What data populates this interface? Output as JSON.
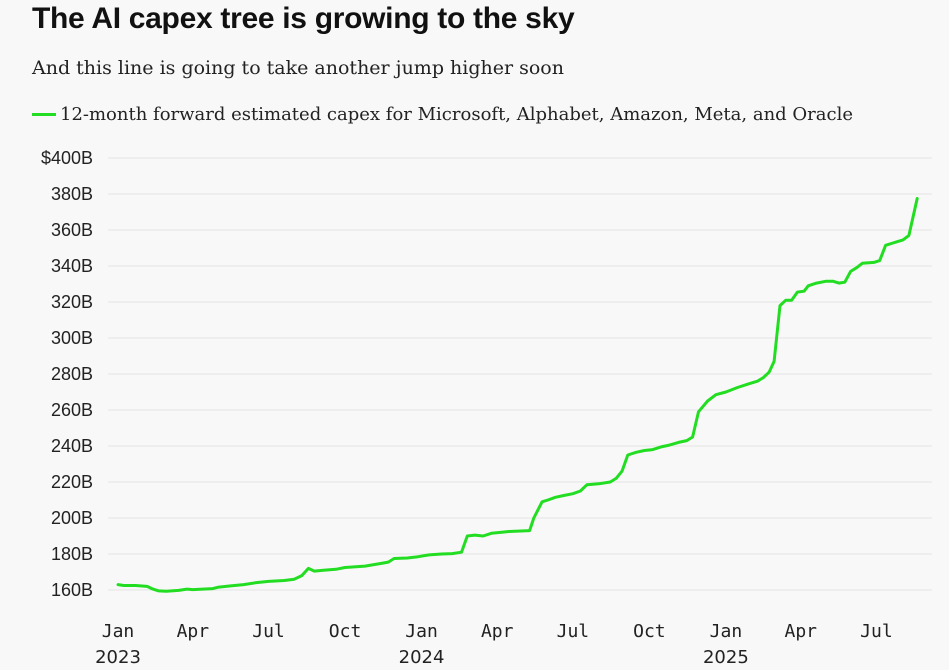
{
  "chart_data": {
    "type": "line",
    "title": "The AI capex tree is growing to the sky",
    "subtitle": "And this line is going to take another jump higher soon",
    "xlabel": "",
    "ylabel": "",
    "ylim": [
      160,
      400
    ],
    "xlim": [
      "2023-01-01",
      "2025-08-20"
    ],
    "y_ticks": [
      {
        "value": 160,
        "label": "160B"
      },
      {
        "value": 180,
        "label": "180B"
      },
      {
        "value": 200,
        "label": "200B"
      },
      {
        "value": 220,
        "label": "220B"
      },
      {
        "value": 240,
        "label": "240B"
      },
      {
        "value": 260,
        "label": "260B"
      },
      {
        "value": 280,
        "label": "280B"
      },
      {
        "value": 300,
        "label": "300B"
      },
      {
        "value": 320,
        "label": "320B"
      },
      {
        "value": 340,
        "label": "340B"
      },
      {
        "value": 360,
        "label": "360B"
      },
      {
        "value": 380,
        "label": "380B"
      },
      {
        "value": 400,
        "label": "$400B"
      }
    ],
    "x_ticks": [
      {
        "date": "2023-01-01",
        "label": "Jan",
        "year": "2023"
      },
      {
        "date": "2023-04-01",
        "label": "Apr"
      },
      {
        "date": "2023-07-01",
        "label": "Jul"
      },
      {
        "date": "2023-10-01",
        "label": "Oct"
      },
      {
        "date": "2024-01-01",
        "label": "Jan",
        "year": "2024"
      },
      {
        "date": "2024-04-01",
        "label": "Apr"
      },
      {
        "date": "2024-07-01",
        "label": "Jul"
      },
      {
        "date": "2024-10-01",
        "label": "Oct"
      },
      {
        "date": "2025-01-01",
        "label": "Jan",
        "year": "2025"
      },
      {
        "date": "2025-04-01",
        "label": "Apr"
      },
      {
        "date": "2025-07-01",
        "label": "Jul"
      }
    ],
    "grid": true,
    "legend_position": "top-left",
    "series": [
      {
        "name": "12-month forward estimated capex for Microsoft, Alphabet, Amazon, Meta, and Oracle",
        "color": "#22dd22",
        "points": [
          [
            "2023-01-01",
            163
          ],
          [
            "2023-01-08",
            162.5
          ],
          [
            "2023-01-22",
            162.5
          ],
          [
            "2023-02-05",
            162
          ],
          [
            "2023-02-12",
            160.5
          ],
          [
            "2023-02-19",
            159.5
          ],
          [
            "2023-02-28",
            159.3
          ],
          [
            "2023-03-15",
            159.8
          ],
          [
            "2023-03-25",
            160.5
          ],
          [
            "2023-04-01",
            160.2
          ],
          [
            "2023-04-25",
            160.8
          ],
          [
            "2023-05-01",
            161.5
          ],
          [
            "2023-05-15",
            162.2
          ],
          [
            "2023-06-01",
            163
          ],
          [
            "2023-06-15",
            164
          ],
          [
            "2023-07-01",
            164.8
          ],
          [
            "2023-07-20",
            165.3
          ],
          [
            "2023-08-01",
            166
          ],
          [
            "2023-08-10",
            168
          ],
          [
            "2023-08-18",
            172
          ],
          [
            "2023-08-25",
            170.5
          ],
          [
            "2023-09-05",
            171
          ],
          [
            "2023-09-20",
            171.5
          ],
          [
            "2023-10-01",
            172.5
          ],
          [
            "2023-10-25",
            173.3
          ],
          [
            "2023-11-10",
            174.5
          ],
          [
            "2023-11-22",
            175.5
          ],
          [
            "2023-11-29",
            177.5
          ],
          [
            "2023-12-15",
            177.8
          ],
          [
            "2023-12-28",
            178.5
          ],
          [
            "2024-01-10",
            179.5
          ],
          [
            "2024-01-25",
            180
          ],
          [
            "2024-02-07",
            180.2
          ],
          [
            "2024-02-18",
            181
          ],
          [
            "2024-02-25",
            190
          ],
          [
            "2024-03-05",
            190.5
          ],
          [
            "2024-03-15",
            190
          ],
          [
            "2024-03-25",
            191.5
          ],
          [
            "2024-04-05",
            192
          ],
          [
            "2024-04-15",
            192.5
          ],
          [
            "2024-05-10",
            193
          ],
          [
            "2024-05-15",
            200
          ],
          [
            "2024-05-25",
            209
          ],
          [
            "2024-06-01",
            210
          ],
          [
            "2024-06-10",
            211.5
          ],
          [
            "2024-06-20",
            212.5
          ],
          [
            "2024-07-01",
            213.5
          ],
          [
            "2024-07-10",
            215
          ],
          [
            "2024-07-18",
            218.5
          ],
          [
            "2024-08-01",
            219
          ],
          [
            "2024-08-15",
            220
          ],
          [
            "2024-08-22",
            222
          ],
          [
            "2024-08-29",
            226
          ],
          [
            "2024-09-05",
            235
          ],
          [
            "2024-09-15",
            236.5
          ],
          [
            "2024-09-25",
            237.5
          ],
          [
            "2024-10-05",
            238
          ],
          [
            "2024-10-15",
            239.5
          ],
          [
            "2024-10-25",
            240.5
          ],
          [
            "2024-11-05",
            242
          ],
          [
            "2024-11-15",
            243
          ],
          [
            "2024-11-22",
            245
          ],
          [
            "2024-11-29",
            259
          ],
          [
            "2024-12-10",
            265
          ],
          [
            "2024-12-20",
            268.5
          ],
          [
            "2025-01-01",
            270
          ],
          [
            "2025-01-15",
            272.5
          ],
          [
            "2025-01-28",
            274.5
          ],
          [
            "2025-02-08",
            276
          ],
          [
            "2025-02-15",
            278
          ],
          [
            "2025-02-22",
            281
          ],
          [
            "2025-02-28",
            287
          ],
          [
            "2025-03-07",
            318
          ],
          [
            "2025-03-14",
            321
          ],
          [
            "2025-03-21",
            321
          ],
          [
            "2025-03-28",
            325.5
          ],
          [
            "2025-04-05",
            326
          ],
          [
            "2025-04-10",
            329
          ],
          [
            "2025-04-20",
            330.5
          ],
          [
            "2025-05-01",
            331.5
          ],
          [
            "2025-05-10",
            331.5
          ],
          [
            "2025-05-17",
            330.5
          ],
          [
            "2025-05-24",
            331
          ],
          [
            "2025-05-31",
            337
          ],
          [
            "2025-06-07",
            339
          ],
          [
            "2025-06-14",
            341.5
          ],
          [
            "2025-06-28",
            342
          ],
          [
            "2025-07-05",
            343
          ],
          [
            "2025-07-12",
            351.5
          ],
          [
            "2025-07-19",
            352.5
          ],
          [
            "2025-07-26",
            353.5
          ],
          [
            "2025-08-02",
            354.5
          ],
          [
            "2025-08-09",
            357
          ],
          [
            "2025-08-19",
            377.5
          ]
        ]
      }
    ]
  }
}
